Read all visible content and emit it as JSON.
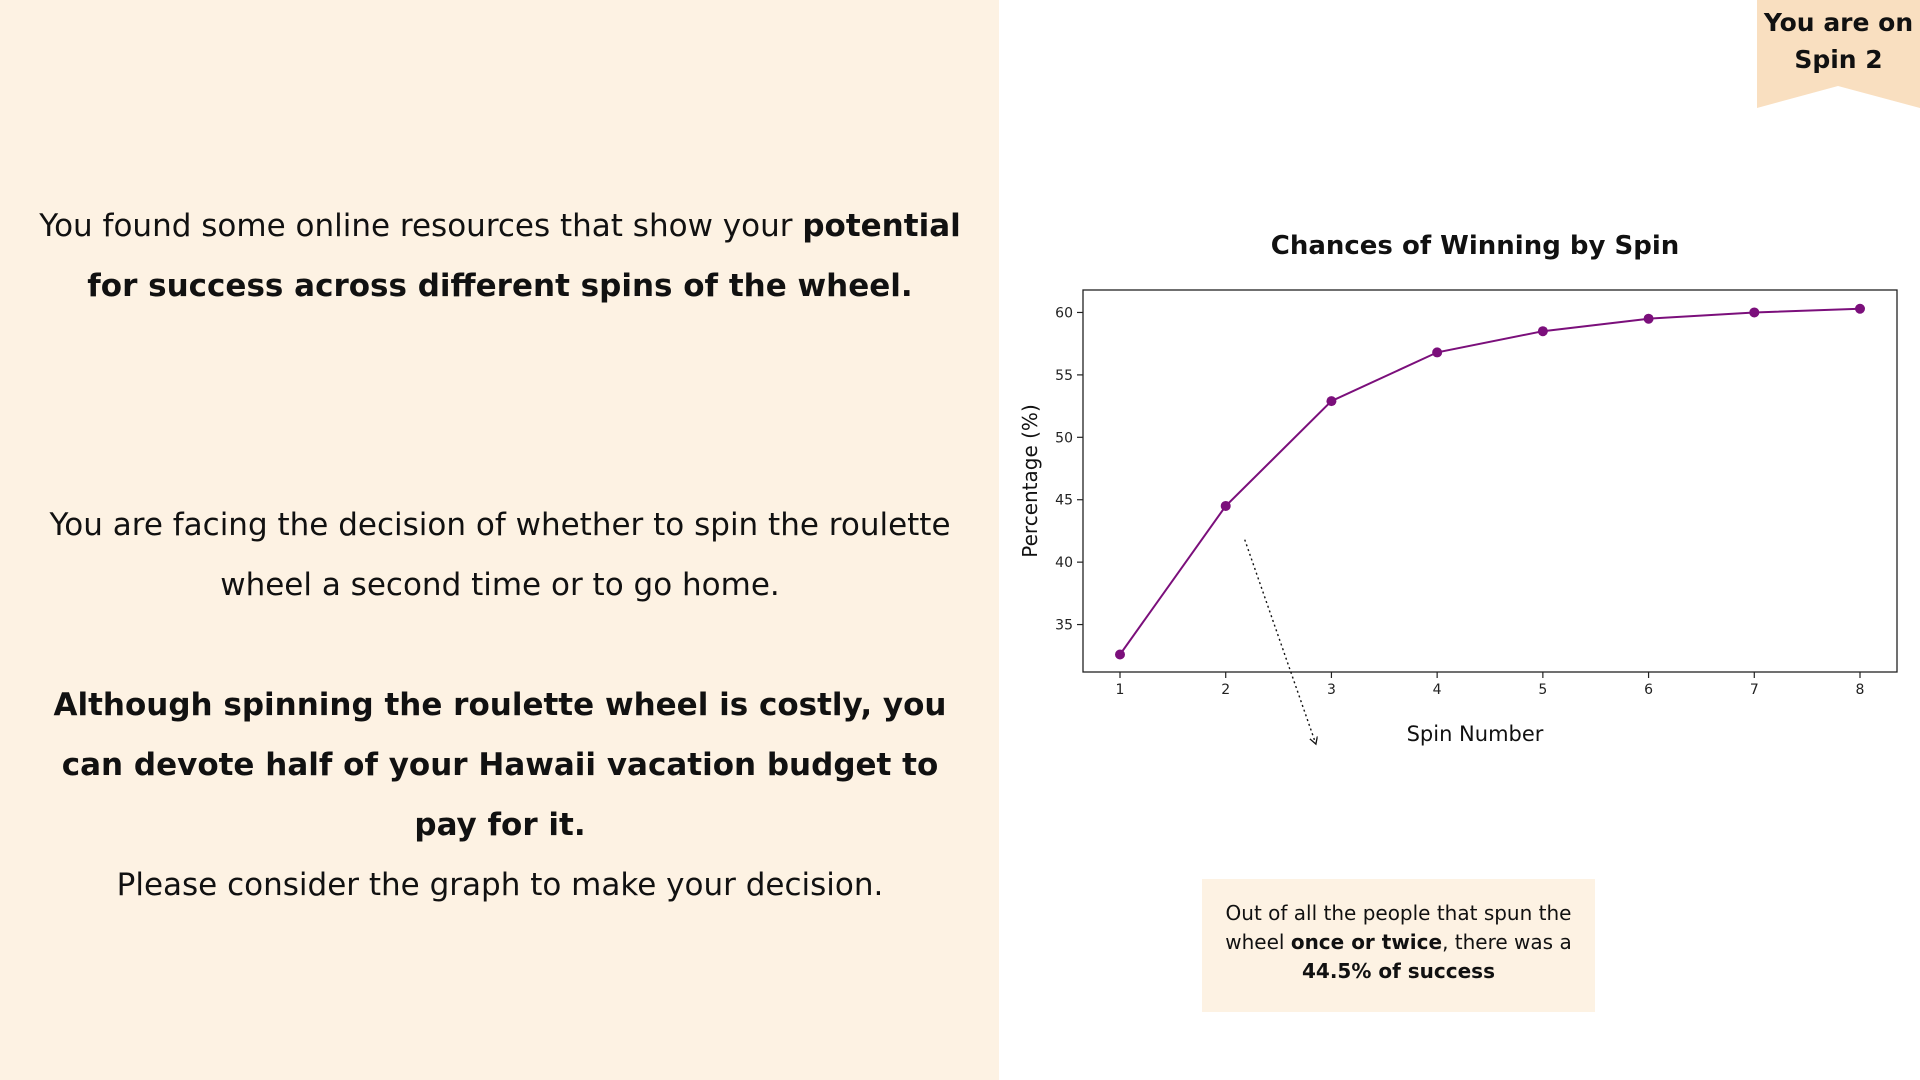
{
  "left_panel": {
    "intro_a": "You found some online resources that show your ",
    "intro_b": "potential for success across different spins of the wheel.",
    "decision": "You are facing the decision of whether to spin the roulette wheel a second time or to go home.",
    "cost_note": "Although spinning the roulette wheel is costly, you can devote half of your Hawaii vacation budget to pay for it.",
    "prompt": "Please consider the graph to make your decision."
  },
  "banner": {
    "line1": "You are on",
    "line2": "Spin 2"
  },
  "callout": {
    "text_a": "Out of all the people that spun the wheel ",
    "text_b": "once or twice",
    "text_c": ", there was a ",
    "text_d": "44.5% of success"
  },
  "colors": {
    "panel_bg": "#fdf2e3",
    "banner_bg": "#f9dfc0",
    "series": "#7b0f7b"
  },
  "chart_data": {
    "type": "line",
    "title": "Chances of Winning by Spin",
    "xlabel": "Spin Number",
    "ylabel": "Percentage (%)",
    "x": [
      1,
      2,
      3,
      4,
      5,
      6,
      7,
      8
    ],
    "series": [
      {
        "values": [
          32.6,
          44.5,
          52.9,
          56.8,
          58.5,
          59.5,
          60.0,
          60.3
        ]
      }
    ],
    "xlim": [
      0.65,
      8.35
    ],
    "ylim": [
      31.2,
      61.8
    ],
    "xticks": [
      1,
      2,
      3,
      4,
      5,
      6,
      7,
      8
    ],
    "yticks": [
      35,
      40,
      45,
      50,
      55,
      60
    ],
    "grid": false,
    "legend": "none",
    "annotation": {
      "from": [
        2.18,
        41.8
      ],
      "to": [
        2.85,
        25.5
      ],
      "style": "dotted-arrow"
    }
  }
}
